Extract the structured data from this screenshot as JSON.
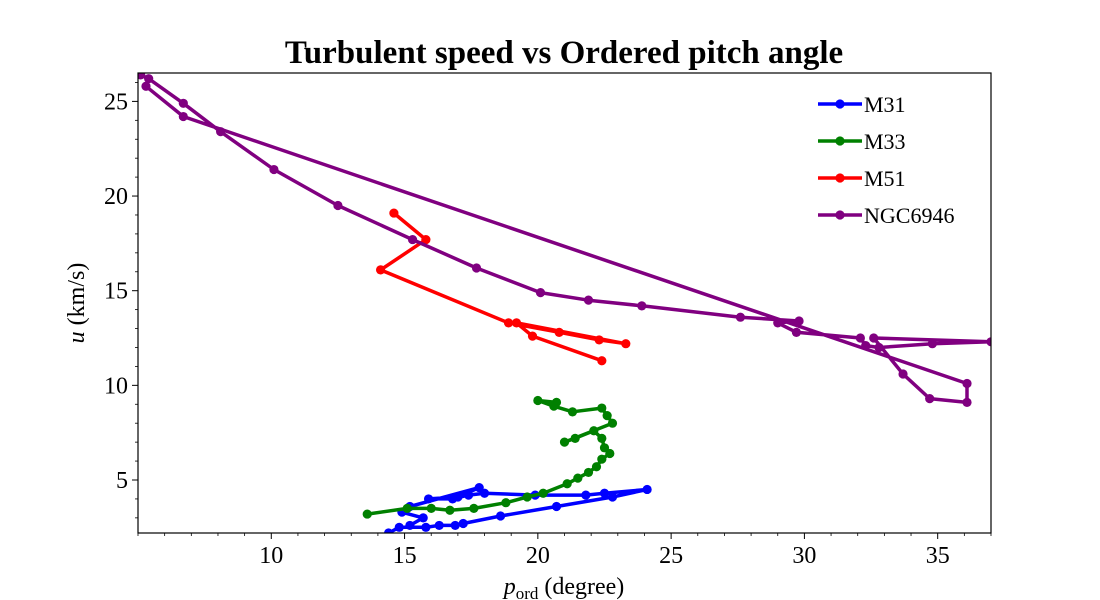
{
  "chart_data": {
    "type": "line",
    "title": "Turbulent speed vs Ordered pitch angle",
    "xlabel": "(degree)",
    "xlabel_symbol": "p",
    "xlabel_subscript": "ord",
    "ylabel": "(km/s)",
    "ylabel_symbol": "u",
    "xlim": [
      5.0,
      37.0
    ],
    "ylim": [
      2.2,
      26.5
    ],
    "xticks": [
      10,
      15,
      20,
      25,
      30,
      35
    ],
    "yticks": [
      5,
      10,
      15,
      20,
      25
    ],
    "xtick_labels": [
      "10",
      "15",
      "20",
      "25",
      "30",
      "35"
    ],
    "ytick_labels": [
      "5",
      "10",
      "15",
      "20",
      "25"
    ],
    "grid": false,
    "legend_position": "top-right",
    "series": [
      {
        "name": "M31",
        "color": "#0000ff",
        "points": [
          [
            14.4,
            2.2
          ],
          [
            14.8,
            2.5
          ],
          [
            15.8,
            2.5
          ],
          [
            16.3,
            2.6
          ],
          [
            16.9,
            2.6
          ],
          [
            17.2,
            2.7
          ],
          [
            18.6,
            3.1
          ],
          [
            20.7,
            3.6
          ],
          [
            22.8,
            4.1
          ],
          [
            24.1,
            4.5
          ],
          [
            22.5,
            4.3
          ],
          [
            21.8,
            4.2
          ],
          [
            19.9,
            4.2
          ],
          [
            18.0,
            4.3
          ],
          [
            17.4,
            4.2
          ],
          [
            16.8,
            4.0
          ],
          [
            15.9,
            4.0
          ],
          [
            17.0,
            4.1
          ],
          [
            17.8,
            4.6
          ],
          [
            15.2,
            3.6
          ],
          [
            14.9,
            3.3
          ],
          [
            15.7,
            3.0
          ],
          [
            15.2,
            2.6
          ]
        ]
      },
      {
        "name": "M33",
        "color": "#008000",
        "points": [
          [
            13.6,
            3.2
          ],
          [
            15.1,
            3.5
          ],
          [
            16.0,
            3.5
          ],
          [
            16.7,
            3.4
          ],
          [
            17.6,
            3.5
          ],
          [
            18.8,
            3.8
          ],
          [
            19.6,
            4.1
          ],
          [
            20.2,
            4.3
          ],
          [
            21.1,
            4.8
          ],
          [
            21.5,
            5.1
          ],
          [
            21.9,
            5.4
          ],
          [
            22.2,
            5.7
          ],
          [
            22.4,
            6.1
          ],
          [
            22.7,
            6.4
          ],
          [
            22.5,
            6.7
          ],
          [
            22.4,
            7.2
          ],
          [
            22.1,
            7.6
          ],
          [
            21.4,
            7.2
          ],
          [
            21.0,
            7.0
          ],
          [
            22.8,
            8.0
          ],
          [
            22.6,
            8.4
          ],
          [
            22.4,
            8.8
          ],
          [
            21.3,
            8.6
          ],
          [
            20.6,
            8.9
          ],
          [
            20.0,
            9.2
          ],
          [
            20.7,
            9.1
          ]
        ]
      },
      {
        "name": "M51",
        "color": "#ff0000",
        "points": [
          [
            14.6,
            19.1
          ],
          [
            15.8,
            17.7
          ],
          [
            14.1,
            16.1
          ],
          [
            18.9,
            13.3
          ],
          [
            20.8,
            12.8
          ],
          [
            22.3,
            12.4
          ],
          [
            23.3,
            12.2
          ],
          [
            19.2,
            13.3
          ],
          [
            19.8,
            12.6
          ],
          [
            22.4,
            11.3
          ]
        ]
      },
      {
        "name": "NGC6946",
        "color": "#800080",
        "points": [
          [
            5.1,
            26.4
          ],
          [
            5.4,
            26.2
          ],
          [
            6.7,
            24.9
          ],
          [
            8.1,
            23.4
          ],
          [
            10.1,
            21.4
          ],
          [
            12.5,
            19.5
          ],
          [
            15.3,
            17.7
          ],
          [
            17.7,
            16.2
          ],
          [
            20.1,
            14.9
          ],
          [
            21.9,
            14.5
          ],
          [
            23.9,
            14.2
          ],
          [
            27.6,
            13.6
          ],
          [
            29.8,
            13.4
          ],
          [
            29.0,
            13.3
          ],
          [
            29.7,
            12.8
          ],
          [
            32.1,
            12.5
          ],
          [
            32.3,
            12.1
          ],
          [
            32.8,
            12.0
          ],
          [
            34.8,
            12.2
          ],
          [
            37.0,
            12.3
          ],
          [
            32.6,
            12.5
          ],
          [
            33.7,
            10.6
          ],
          [
            34.7,
            9.3
          ],
          [
            36.1,
            9.1
          ],
          [
            36.1,
            10.1
          ],
          [
            6.7,
            24.2
          ],
          [
            5.3,
            25.8
          ]
        ]
      }
    ]
  }
}
